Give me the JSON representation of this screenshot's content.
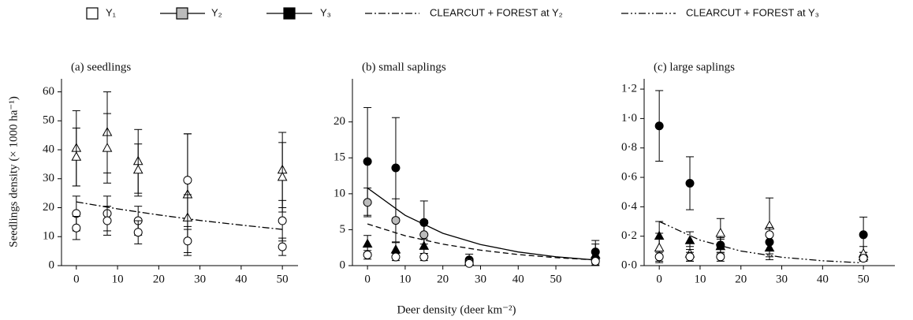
{
  "legend": [
    {
      "label": "Y₁",
      "fill": "#ffffff",
      "line": "none"
    },
    {
      "label": "Y₂",
      "fill": "#bbbbbb",
      "line": "solid"
    },
    {
      "label": "Y₃",
      "fill": "#000000",
      "line": "solid"
    },
    {
      "label": "CLEARCUT + FOREST at Y₂",
      "line": "dashdot"
    },
    {
      "label": "CLEARCUT + FOREST at Y₃",
      "line": "dashdotdot"
    }
  ],
  "ylabel": "Seedlings density (× 1000 ha⁻¹)",
  "xlabel": "Deer density (deer km⁻²)",
  "chart_data": [
    {
      "type": "scatter",
      "title": "(a) seedlings",
      "xlim": [
        -3.6,
        53.8
      ],
      "xticks": [
        0,
        10,
        20,
        30,
        40,
        50
      ],
      "ylim": [
        0,
        64.5
      ],
      "yticks": [
        0,
        10,
        20,
        30,
        40,
        50,
        60
      ],
      "series": [
        {
          "marker": "triangle",
          "color": "#ffffff",
          "x": [
            0,
            7.5,
            15,
            27,
            50
          ],
          "values": [
            40.5,
            46,
            36,
            24.5,
            33
          ],
          "errors": [
            13,
            14,
            11,
            21,
            13
          ]
        },
        {
          "marker": "triangle",
          "color": "#ffffff",
          "x": [
            0,
            7.5,
            15,
            27,
            50
          ],
          "values": [
            37.5,
            40.5,
            33,
            16.5,
            30.5
          ],
          "errors": [
            10,
            12,
            9,
            8,
            12
          ]
        },
        {
          "marker": "circle",
          "color": "#ffffff",
          "x": [
            0,
            7.5,
            15,
            27,
            50
          ],
          "values": [
            18,
            18,
            15.5,
            29.5,
            15.5
          ],
          "errors": [
            6,
            6,
            5,
            16,
            7
          ]
        },
        {
          "marker": "circle",
          "color": "#ffffff",
          "x": [
            0,
            7.5,
            15,
            27,
            50
          ],
          "values": [
            13,
            15.5,
            11.5,
            8.5,
            6.5
          ],
          "errors": [
            4,
            5,
            4,
            4,
            3
          ]
        }
      ],
      "lines": [
        {
          "dash": "dashdot",
          "x": [
            0,
            10,
            20,
            30,
            40,
            50
          ],
          "values": [
            22,
            19.6,
            17.5,
            15.6,
            14.0,
            12.5
          ]
        }
      ]
    },
    {
      "type": "scatter",
      "title": "(b) small saplings",
      "xlim": [
        -4,
        61.5
      ],
      "xticks": [
        0,
        10,
        20,
        30,
        40,
        50
      ],
      "ylim": [
        0,
        26
      ],
      "yticks": [
        0,
        5,
        10,
        15,
        20
      ],
      "series": [
        {
          "marker": "circle",
          "color": "#000000",
          "x": [
            0,
            7.5,
            15,
            27,
            60.5
          ],
          "values": [
            14.5,
            13.6,
            6,
            0.8,
            1.9
          ],
          "errors": [
            7.5,
            7,
            3,
            0.8,
            1.6
          ]
        },
        {
          "marker": "circle",
          "color": "#bbbbbb",
          "x": [
            0,
            7.5,
            15,
            27,
            60.5
          ],
          "values": [
            8.8,
            6.3,
            4.3,
            0.5,
            0.9
          ],
          "errors": [
            2,
            3,
            2,
            0.5,
            1
          ]
        },
        {
          "marker": "triangle",
          "color": "#000000",
          "x": [
            0,
            7.5,
            15,
            27,
            60.5
          ],
          "values": [
            3,
            2.2,
            2.7,
            0.5,
            1.5
          ],
          "errors": [
            1.2,
            1,
            1,
            0.5,
            1.5
          ]
        },
        {
          "marker": "circle",
          "color": "#ffffff",
          "x": [
            0,
            7.5,
            15,
            27,
            60.5
          ],
          "values": [
            1.5,
            1.2,
            1.2,
            0.3,
            0.6
          ],
          "errors": [
            0.6,
            0.5,
            0.5,
            0.3,
            0.5
          ]
        }
      ],
      "lines": [
        {
          "dash": "solid",
          "x": [
            0,
            10,
            20,
            30,
            40,
            50,
            60
          ],
          "values": [
            10.8,
            7.0,
            4.5,
            2.94,
            1.9,
            1.23,
            0.8
          ]
        },
        {
          "dash": "dashed",
          "x": [
            0,
            10,
            20,
            30,
            40,
            50,
            60
          ],
          "values": [
            5.8,
            4.16,
            2.99,
            2.15,
            1.54,
            1.11,
            0.8
          ]
        }
      ]
    },
    {
      "type": "scatter",
      "title": "(c) large saplings",
      "xlim": [
        -3.7,
        57.7
      ],
      "xticks": [
        0,
        10,
        20,
        30,
        40,
        50
      ],
      "ylim": [
        0,
        1.27
      ],
      "yticks": [
        {
          "value": 0,
          "label": "0·0"
        },
        {
          "value": 0.2,
          "label": "0·2"
        },
        {
          "value": 0.4,
          "label": "0·4"
        },
        {
          "value": 0.6,
          "label": "0·6"
        },
        {
          "value": 0.8,
          "label": "0·8"
        },
        {
          "value": 1.0,
          "label": "1·0"
        },
        {
          "value": 1.2,
          "label": "1·2"
        }
      ],
      "series": [
        {
          "marker": "circle",
          "color": "#000000",
          "x": [
            0,
            7.5,
            15,
            27,
            50
          ],
          "values": [
            0.95,
            0.56,
            0.14,
            0.16,
            0.21
          ],
          "errors": [
            0.24,
            0.18,
            0.05,
            0.1,
            0.12
          ]
        },
        {
          "marker": "triangle",
          "color": "#000000",
          "x": [
            0,
            7.5,
            15,
            27,
            50
          ],
          "values": [
            0.2,
            0.17,
            0.13,
            0.12,
            0.06
          ],
          "errors": [
            0.1,
            0.06,
            0.05,
            0.08,
            0.03
          ]
        },
        {
          "marker": "triangle",
          "color": "#ffffff",
          "x": [
            0,
            7.5,
            15,
            27,
            50
          ],
          "values": [
            0.12,
            0.08,
            0.22,
            0.27,
            0.08
          ],
          "errors": [
            0.1,
            0.05,
            0.1,
            0.19,
            0.05
          ]
        },
        {
          "marker": "circle",
          "color": "#ffffff",
          "x": [
            0,
            7.5,
            15,
            27,
            50
          ],
          "values": [
            0.06,
            0.06,
            0.06,
            0.21,
            0.05
          ],
          "errors": [
            0.03,
            0.03,
            0.03,
            0.05,
            0.02
          ]
        }
      ],
      "lines": [
        {
          "dash": "dashdotdot",
          "x": [
            0,
            10,
            20,
            30,
            40,
            49
          ],
          "values": [
            0.3,
            0.173,
            0.099,
            0.057,
            0.033,
            0.02
          ]
        }
      ]
    }
  ]
}
